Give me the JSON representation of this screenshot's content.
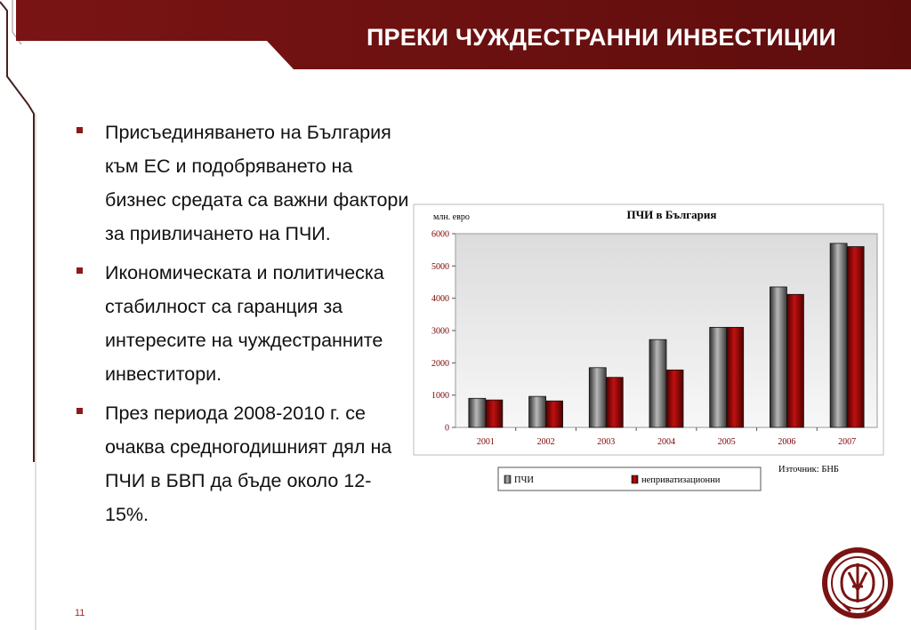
{
  "slide": {
    "title": "ПРЕКИ ЧУЖДЕСТРАННИ ИНВЕСТИЦИИ",
    "page_number": "11",
    "accent_color": "#6e0f0f",
    "bullets": [
      "Присъединяването на България към ЕС и подобряването на бизнес средата са важни фактори за привличането на ПЧИ.",
      "Икономическата и политическа стабилност са гаранция за интересите на чуждестранните инвеститори.",
      "През периода 2008-2010 г. се очаква средногодишният дял на ПЧИ в БВП да бъде около 12-15%."
    ]
  },
  "chart_data": {
    "type": "bar",
    "title": "ПЧИ в България",
    "ylabel": "млн. евро",
    "xlabel": "",
    "ylim": [
      0,
      6000
    ],
    "yticks": [
      0,
      1000,
      2000,
      3000,
      4000,
      5000,
      6000
    ],
    "categories": [
      "2001",
      "2002",
      "2003",
      "2004",
      "2005",
      "2006",
      "2007"
    ],
    "series": [
      {
        "name": "ПЧИ",
        "color": "#6b6b6b",
        "values": [
          900,
          960,
          1850,
          2720,
          3100,
          4350,
          5700
        ]
      },
      {
        "name": "неприватизационни",
        "color": "#8b0000",
        "values": [
          850,
          820,
          1550,
          1780,
          3100,
          4120,
          5600
        ]
      }
    ],
    "grid": false,
    "legend_position": "bottom",
    "source": "Източник: БНБ"
  }
}
